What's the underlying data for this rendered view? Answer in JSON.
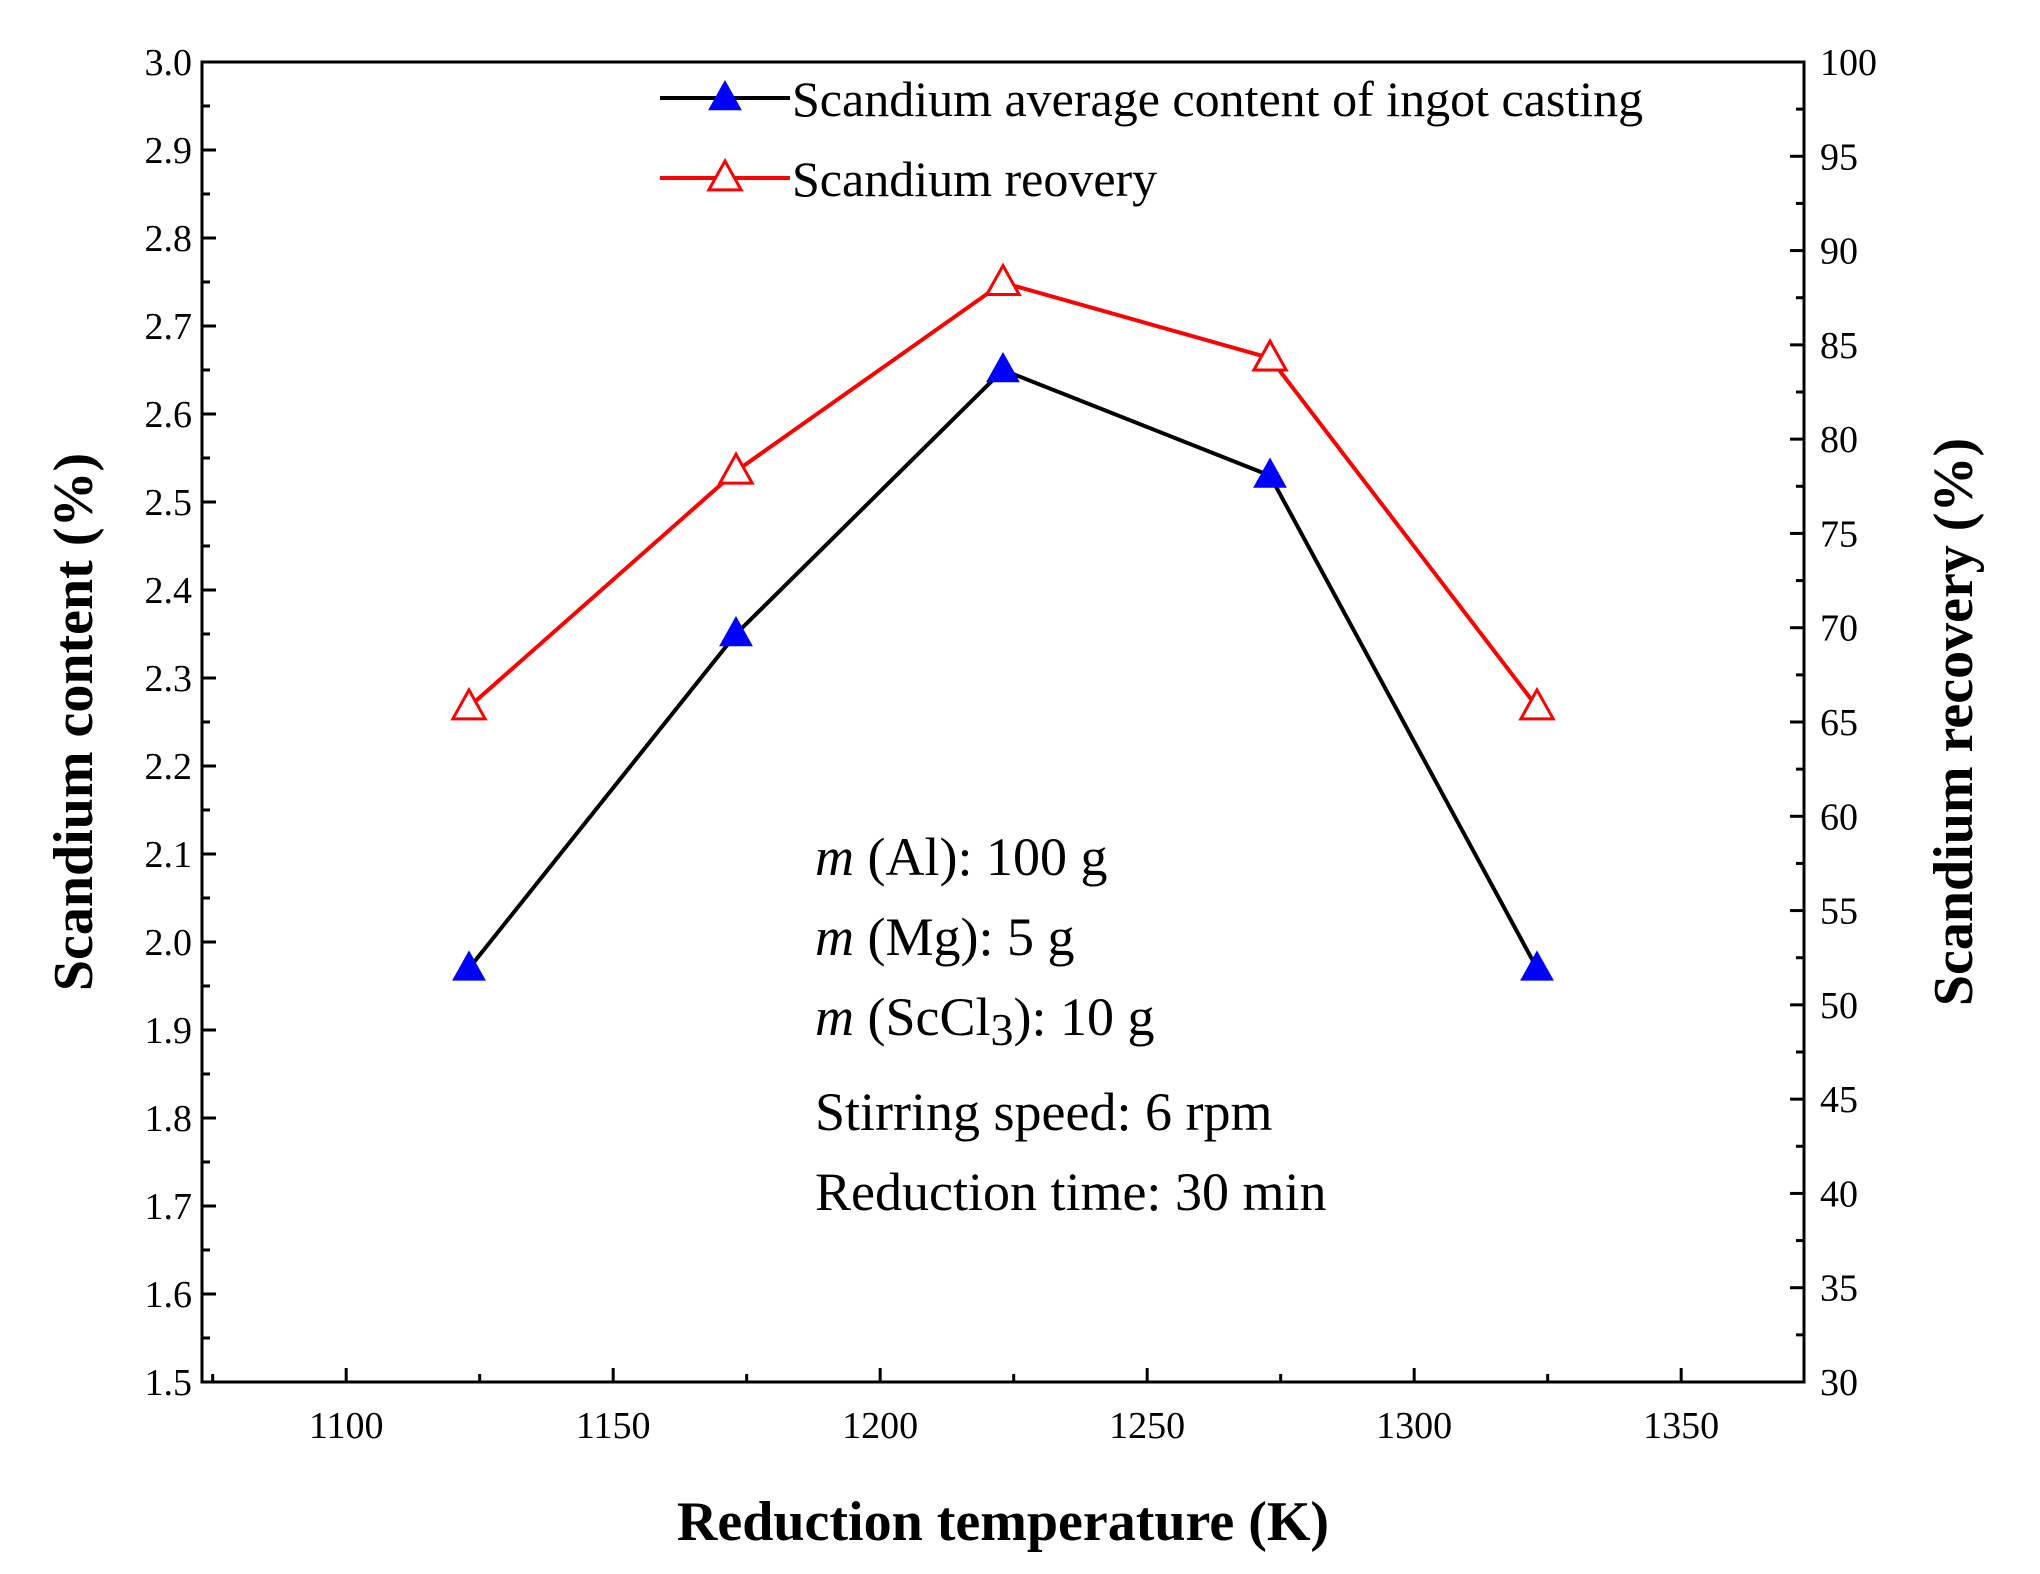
{
  "chart_data": {
    "type": "line",
    "xlabel": "Reduction temperature (K)",
    "ylabel_left": "Scandium content (%)",
    "ylabel_right": "Scandium recovery (%)",
    "xlim": [
      1073,
      1373
    ],
    "ylim_left": [
      1.5,
      3.0
    ],
    "ylim_right": [
      30,
      100
    ],
    "x_ticks": [
      1100,
      1150,
      1200,
      1250,
      1300,
      1350
    ],
    "y_ticks_left": [
      "1.5",
      "1.6",
      "1.7",
      "1.8",
      "1.9",
      "2.0",
      "2.1",
      "2.2",
      "2.3",
      "2.4",
      "2.5",
      "2.6",
      "2.7",
      "2.8",
      "2.9",
      "3.0"
    ],
    "y_ticks_right": [
      30,
      35,
      40,
      45,
      50,
      55,
      60,
      65,
      70,
      75,
      80,
      85,
      90,
      95,
      100
    ],
    "x": [
      1123,
      1173,
      1223,
      1273,
      1323
    ],
    "series": [
      {
        "name": "Scandium average content of ingot casting",
        "axis": "left",
        "values": [
          1.97,
          2.35,
          2.65,
          2.53,
          1.97
        ],
        "line_color": "#000000",
        "marker": "filled-triangle",
        "marker_color": "#0000ff"
      },
      {
        "name": "Scandium reovery",
        "axis": "right",
        "values": [
          65.8,
          78.3,
          88.3,
          84.3,
          65.8
        ],
        "line_color": "#ff0000",
        "marker": "open-triangle",
        "marker_color": "#ff0000"
      }
    ],
    "legend_position": "top",
    "annotations": [
      {
        "italic": "m",
        "text": " (Al): 100 g"
      },
      {
        "italic": "m",
        "text": " (Mg): 5 g"
      },
      {
        "italic": "m",
        "text": " (ScCl",
        "sub": "3",
        "after": "): 10 g"
      },
      {
        "italic": "",
        "text": "Stirring speed: 6 rpm"
      },
      {
        "italic": "",
        "text": "Reduction time: 30 min"
      }
    ]
  }
}
